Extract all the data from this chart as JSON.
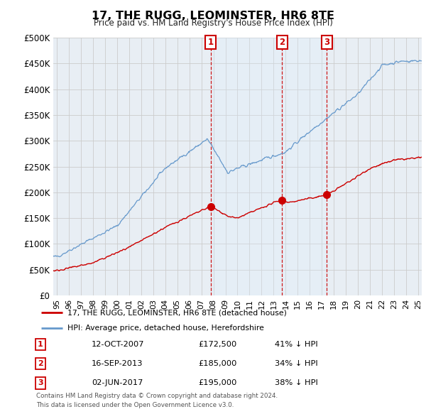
{
  "title": "17, THE RUGG, LEOMINSTER, HR6 8TE",
  "subtitle": "Price paid vs. HM Land Registry's House Price Index (HPI)",
  "red_label": "17, THE RUGG, LEOMINSTER, HR6 8TE (detached house)",
  "blue_label": "HPI: Average price, detached house, Herefordshire",
  "transactions": [
    {
      "num": 1,
      "date": "12-OCT-2007",
      "price": 172500,
      "pct": "41%",
      "dir": "↓"
    },
    {
      "num": 2,
      "date": "16-SEP-2013",
      "price": 185000,
      "pct": "34%",
      "dir": "↓"
    },
    {
      "num": 3,
      "date": "02-JUN-2017",
      "price": 195000,
      "pct": "38%",
      "dir": "↓"
    }
  ],
  "footer": [
    "Contains HM Land Registry data © Crown copyright and database right 2024.",
    "This data is licensed under the Open Government Licence v3.0."
  ],
  "transaction_dates_decimal": [
    2007.78,
    2013.71,
    2017.42
  ],
  "transaction_prices": [
    172500,
    185000,
    195000
  ],
  "red_color": "#cc0000",
  "blue_color": "#6699cc",
  "blue_fill_color": "#ddeeff",
  "grid_color": "#cccccc",
  "background_color": "#e8eef4",
  "ylim": [
    0,
    500000
  ],
  "yticks": [
    0,
    50000,
    100000,
    150000,
    200000,
    250000,
    300000,
    350000,
    400000,
    450000,
    500000
  ],
  "xlim_start": 1994.7,
  "xlim_end": 2025.3,
  "xtick_start": 1995,
  "xtick_end": 2025
}
